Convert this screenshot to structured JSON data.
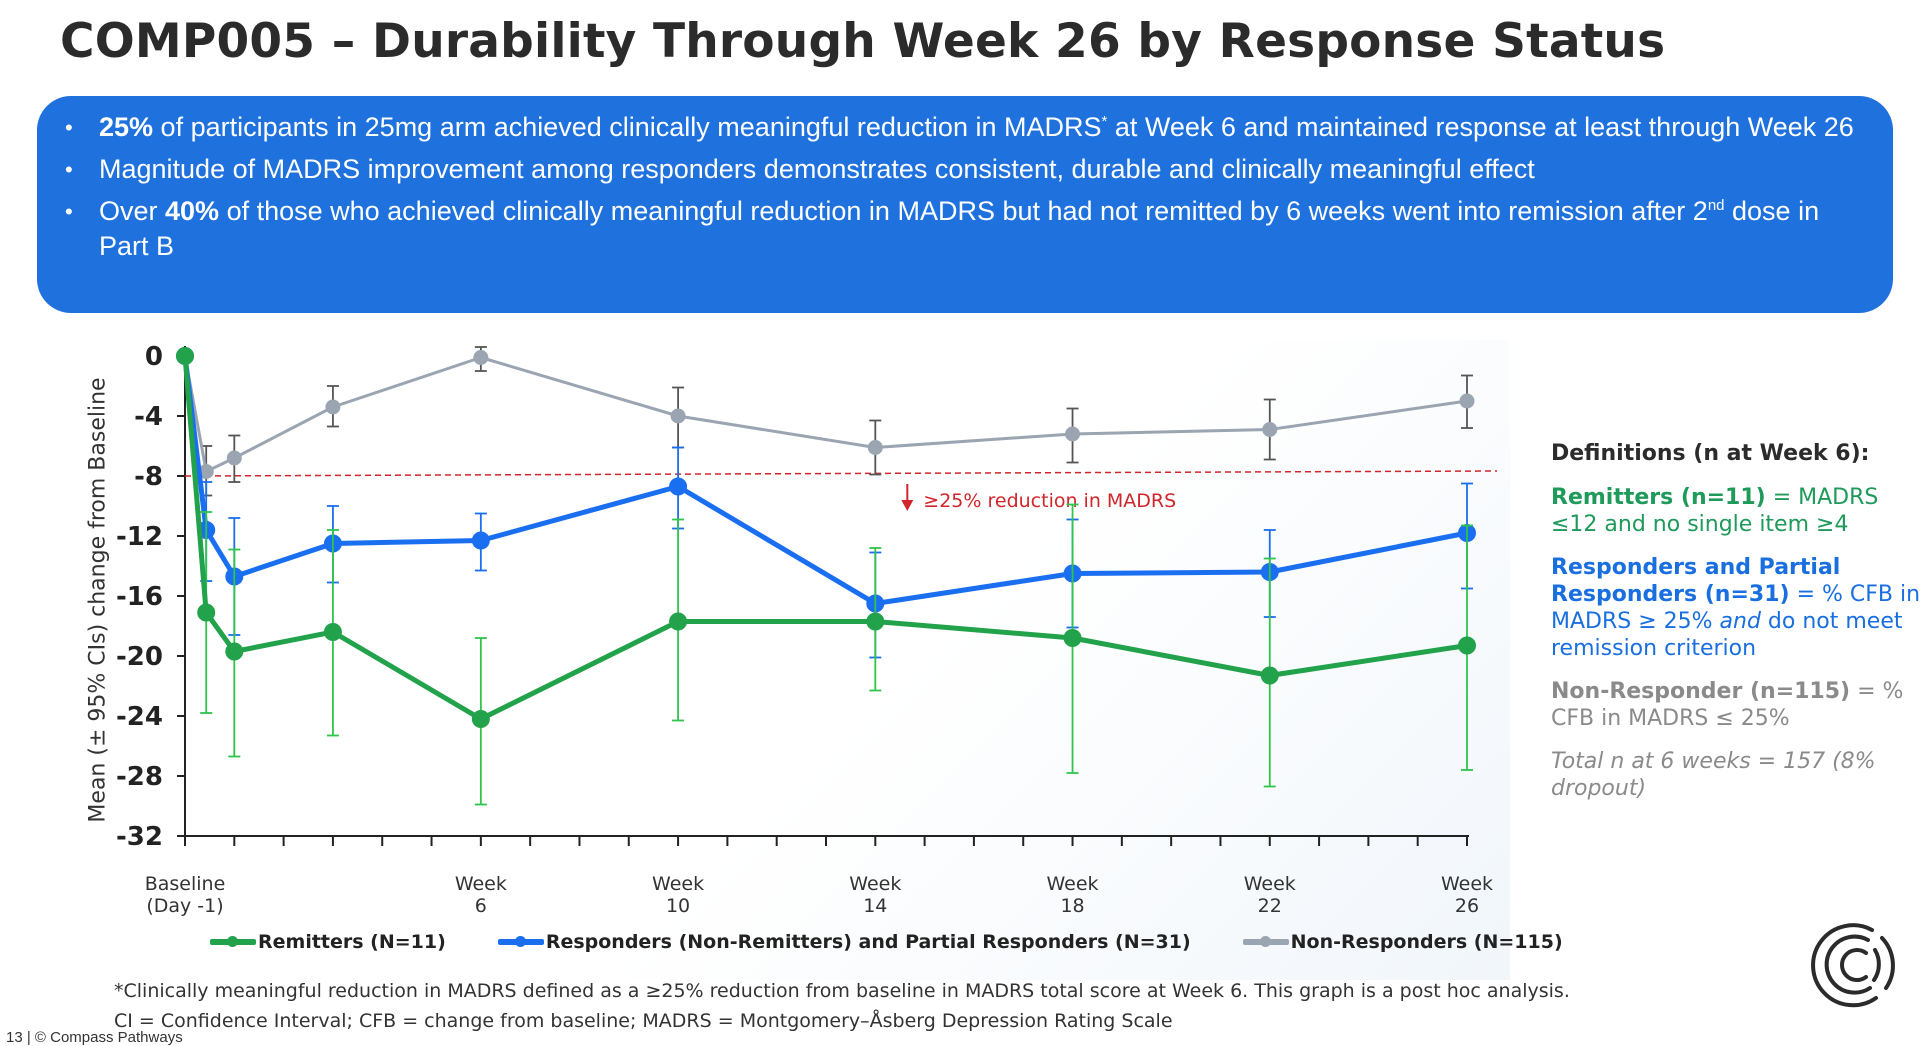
{
  "title": "COMP005 – Durability Through Week 26 by Response Status",
  "banner": {
    "bullets": [
      {
        "bold": "25%",
        "text": " of participants in 25mg arm achieved clinically meaningful reduction in MADRS",
        "sup": "*",
        "text2": " at Week 6 and maintained response at least through Week 26"
      },
      {
        "bold": "",
        "text": "Magnitude of MADRS improvement among responders demonstrates consistent, durable and clinically meaningful effect",
        "sup": "",
        "text2": ""
      },
      {
        "pre": "Over ",
        "bold": "40%",
        "text": " of those who achieved clinically meaningful reduction in MADRS but had not remitted by 6 weeks went into remission after 2",
        "sup": "nd",
        "text2": " dose in Part B"
      }
    ],
    "color": "#1f72de"
  },
  "chart_data": {
    "type": "line",
    "title": "",
    "xlabel": "",
    "ylabel": "Mean (± 95% CIs) change from Baseline",
    "ylim": [
      -32,
      0
    ],
    "yticks": [
      0,
      -4,
      -8,
      -12,
      -16,
      -20,
      -24,
      -28,
      -32
    ],
    "xlim_weeks": [
      0,
      26
    ],
    "minor_xticks_every_week": true,
    "xtick_labels": [
      {
        "week": 0,
        "line1": "Baseline",
        "line2": "(Day -1)"
      },
      {
        "week": 6,
        "line1": "Week",
        "line2": "6"
      },
      {
        "week": 10,
        "line1": "Week",
        "line2": "10"
      },
      {
        "week": 14,
        "line1": "Week",
        "line2": "14"
      },
      {
        "week": 18,
        "line1": "Week",
        "line2": "18"
      },
      {
        "week": 22,
        "line1": "Week",
        "line2": "22"
      },
      {
        "week": 26,
        "line1": "Week",
        "line2": "26"
      }
    ],
    "x": [
      0,
      0.43,
      1,
      3,
      6,
      10,
      14,
      18,
      22,
      26
    ],
    "series": [
      {
        "name": "Non-Responders (N=115)",
        "color": "#9aa5b1",
        "err_color": "#555555",
        "values": [
          0,
          -7.7,
          -6.8,
          -3.4,
          -0.1,
          -4.0,
          -6.1,
          -5.2,
          -4.9,
          -3.0
        ],
        "ci_upper": [
          0,
          -6.0,
          -5.3,
          -2.0,
          0.6,
          -2.1,
          -4.3,
          -3.5,
          -2.9,
          -1.3
        ],
        "ci_lower": [
          0,
          -9.3,
          -8.4,
          -4.7,
          -1.0,
          -6.1,
          -7.9,
          -7.1,
          -6.9,
          -4.8
        ]
      },
      {
        "name": "Responders (Non-Remitters) and Partial Responders (N=31)",
        "color": "#1a6ff0",
        "err_color": "#1a6ff0",
        "values": [
          0,
          -11.6,
          -14.7,
          -12.5,
          -12.3,
          -8.7,
          -16.5,
          -14.5,
          -14.4,
          -11.8
        ],
        "ci_upper": [
          0,
          -8.4,
          -10.8,
          -10.0,
          -10.5,
          -6.1,
          -13.1,
          -10.9,
          -11.6,
          -8.5
        ],
        "ci_lower": [
          0,
          -15.0,
          -18.6,
          -15.1,
          -14.3,
          -11.5,
          -20.1,
          -18.1,
          -17.4,
          -15.5
        ]
      },
      {
        "name": "Remitters (N=11)",
        "color": "#22a24a",
        "err_color": "#2fc44a",
        "values": [
          0,
          -17.1,
          -19.7,
          -18.4,
          -24.2,
          -17.7,
          -17.7,
          -18.8,
          -21.3,
          -19.3
        ],
        "ci_upper": [
          0,
          -10.4,
          -12.9,
          -11.6,
          -18.8,
          -10.9,
          -12.8,
          -9.9,
          -13.5,
          -11.3
        ],
        "ci_lower": [
          0,
          -23.8,
          -26.7,
          -25.3,
          -29.9,
          -24.3,
          -22.3,
          -27.8,
          -28.7,
          -27.6
        ]
      }
    ],
    "reference_line": {
      "y": -8,
      "color": "#d0262b",
      "style": "dashed",
      "label": "≥25% reduction in MADRS",
      "arrow": "down"
    },
    "legend": {
      "placement": "bottom",
      "entries": [
        {
          "label": "Remitters (N=11)",
          "color": "#22a24a"
        },
        {
          "label": "Responders (Non-Remitters) and Partial Responders (N=31)",
          "color": "#1a6ff0"
        },
        {
          "label": "Non-Responders (N=115)",
          "color": "#9aa5b1"
        }
      ]
    }
  },
  "definitions": {
    "heading": "Definitions (n at Week 6):",
    "remitters": {
      "bold": "Remitters (n=11)",
      "text": " = MADRS ≤12 and no single item ≥4"
    },
    "responders": {
      "bold": "Responders and Partial Responders (n=31)",
      "text": " = % CFB in MADRS ≥ 25% ",
      "italic": "and",
      "text2": " do not meet remission criterion"
    },
    "nonresponders": {
      "bold": "Non-Responder (n=115)",
      "text": " = % CFB in MADRS ≤ 25%"
    },
    "total": "Total n at 6 weeks = 157 (8% dropout)"
  },
  "footnotes": {
    "line1": "*Clinically meaningful reduction in MADRS defined as a ≥25% reduction from baseline in MADRS total score at Week 6.  This graph is a post hoc analysis.",
    "line2": "CI = Confidence Interval; CFB = change from baseline; MADRS = Montgomery–Åsberg Depression Rating Scale"
  },
  "page_footer": "13 | © Compass Pathways"
}
